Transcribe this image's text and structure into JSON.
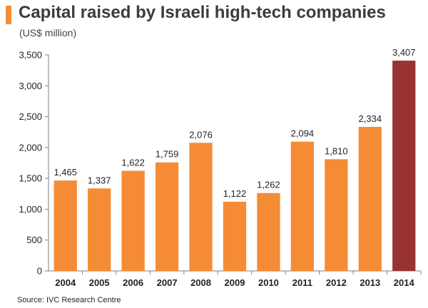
{
  "colors": {
    "bar": "#f58c35",
    "highlight": "#993333",
    "axis": "#7f7f7f"
  },
  "chart_data": {
    "type": "bar",
    "title": "Capital raised by Israeli high-tech companies",
    "subtitle": "(US$ million)",
    "xlabel": "",
    "ylabel": "",
    "categories": [
      "2004",
      "2005",
      "2006",
      "2007",
      "2008",
      "2009",
      "2010",
      "2011",
      "2012",
      "2013",
      "2014"
    ],
    "values": [
      1465,
      1337,
      1622,
      1759,
      2076,
      1122,
      1262,
      2094,
      1810,
      2334,
      3407
    ],
    "value_labels": [
      "1,465",
      "1,337",
      "1,622",
      "1,759",
      "2,076",
      "1,122",
      "1,262",
      "2,094",
      "1,810",
      "2,334",
      "3,407"
    ],
    "highlight_category": "2014",
    "ylim": [
      0,
      3500
    ],
    "yticks": [
      0,
      500,
      1000,
      1500,
      2000,
      2500,
      3000,
      3500
    ],
    "ytick_labels": [
      "0",
      "500",
      "1,000",
      "1,500",
      "2,000",
      "2,500",
      "3,000",
      "3,500"
    ],
    "grid": false,
    "legend": "none"
  },
  "footer": {
    "source": "Source: IVC Research Centre"
  }
}
